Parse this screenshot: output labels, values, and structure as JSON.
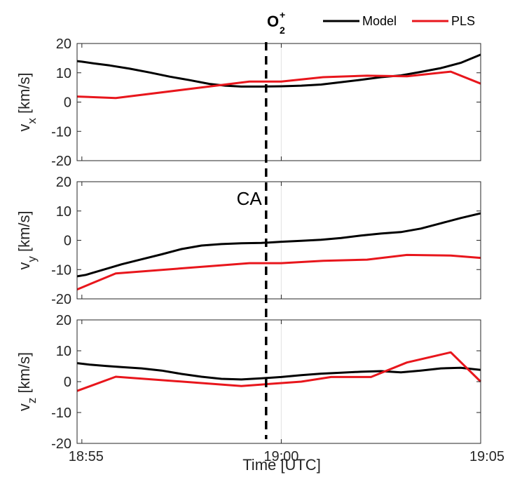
{
  "chart_data": {
    "type": "line",
    "xlabel": "Time [UTC]",
    "xticks": [
      {
        "t": 0,
        "label": "18:55"
      },
      {
        "t": 5,
        "label": "19:00"
      },
      {
        "t": 10,
        "label": "19:05"
      }
    ],
    "xlim": [
      -0.12,
      10
    ],
    "ca_time": 4.62,
    "ca_label": "CA",
    "species_label": {
      "base": "O",
      "sub": "2",
      "sup": "+"
    },
    "colors": {
      "model": "#000000",
      "pls": "#e8161c",
      "ca_line": "#000000"
    },
    "legend": [
      {
        "name": "Model",
        "color": "#000000"
      },
      {
        "name": "PLS",
        "color": "#e8161c"
      }
    ],
    "panels": [
      {
        "ylabel": "v",
        "ysub": "x",
        "yunit": " [km/s]",
        "ylim": [
          -20,
          20
        ],
        "yticks": [
          20,
          10,
          0,
          -10,
          -20
        ],
        "series": [
          {
            "name": "Model",
            "x": [
              -0.12,
              0,
              0.3,
              0.7,
              1.2,
              1.7,
              2.2,
              2.7,
              3.2,
              3.6,
              4.0,
              4.5,
              5.0,
              5.5,
              6.0,
              6.5,
              7.0,
              7.5,
              8.0,
              8.5,
              9.0,
              9.5,
              10.0
            ],
            "y": [
              14,
              13.8,
              13.2,
              12.5,
              11.4,
              10.1,
              8.7,
              7.5,
              6.2,
              5.6,
              5.3,
              5.3,
              5.4,
              5.6,
              6.0,
              6.8,
              7.6,
              8.5,
              9.1,
              10.3,
              11.6,
              13.4,
              16.2
            ]
          },
          {
            "name": "PLS",
            "x": [
              -0.12,
              0.85,
              4.2,
              5.0,
              6.05,
              7.15,
              8.15,
              9.25,
              10.0
            ],
            "y": [
              1.9,
              1.4,
              7.0,
              7.0,
              8.5,
              9.0,
              8.8,
              10.4,
              6.3
            ]
          }
        ]
      },
      {
        "ylabel": "v",
        "ysub": "y",
        "yunit": " [km/s]",
        "ylim": [
          -20,
          20
        ],
        "yticks": [
          20,
          10,
          0,
          -10,
          -20
        ],
        "series": [
          {
            "name": "Model",
            "x": [
              -0.12,
              0.1,
              0.5,
              1.0,
              1.5,
              2.0,
              2.5,
              3.0,
              3.5,
              4.0,
              4.5,
              5.0,
              5.5,
              6.0,
              6.5,
              7.0,
              7.5,
              8.0,
              8.5,
              9.0,
              9.5,
              10.0
            ],
            "y": [
              -12.3,
              -11.8,
              -10.2,
              -8.2,
              -6.5,
              -4.8,
              -3.0,
              -1.8,
              -1.3,
              -1.0,
              -0.9,
              -0.5,
              -0.2,
              0.2,
              0.8,
              1.6,
              2.3,
              2.8,
              4.0,
              5.8,
              7.6,
              9.2
            ]
          },
          {
            "name": "PLS",
            "x": [
              -0.12,
              0.85,
              4.2,
              5.0,
              6.05,
              7.15,
              8.15,
              9.25,
              10.0
            ],
            "y": [
              -16.8,
              -11.3,
              -7.8,
              -7.8,
              -7.0,
              -6.6,
              -5.0,
              -5.2,
              -6.0
            ]
          }
        ]
      },
      {
        "ylabel": "v",
        "ysub": "z",
        "yunit": " [km/s]",
        "ylim": [
          -20,
          20
        ],
        "yticks": [
          20,
          10,
          0,
          -10,
          -20
        ],
        "series": [
          {
            "name": "Model",
            "x": [
              -0.12,
              0.2,
              0.6,
              1.0,
              1.5,
              2.0,
              2.5,
              3.0,
              3.5,
              4.0,
              4.5,
              5.0,
              5.5,
              6.0,
              6.5,
              7.0,
              7.5,
              8.0,
              8.5,
              9.0,
              9.5,
              10.0
            ],
            "y": [
              6.0,
              5.5,
              5.1,
              4.7,
              4.3,
              3.6,
              2.5,
              1.6,
              0.9,
              0.7,
              1.1,
              1.5,
              2.1,
              2.6,
              2.9,
              3.2,
              3.4,
              3.0,
              3.6,
              4.3,
              4.5,
              3.8
            ]
          },
          {
            "name": "PLS",
            "x": [
              -0.12,
              0.85,
              4.0,
              5.5,
              6.25,
              7.25,
              8.15,
              9.25,
              10.0
            ],
            "y": [
              -3.0,
              1.6,
              -1.4,
              0.0,
              1.5,
              1.5,
              6.2,
              9.5,
              0.0
            ]
          }
        ]
      }
    ]
  }
}
